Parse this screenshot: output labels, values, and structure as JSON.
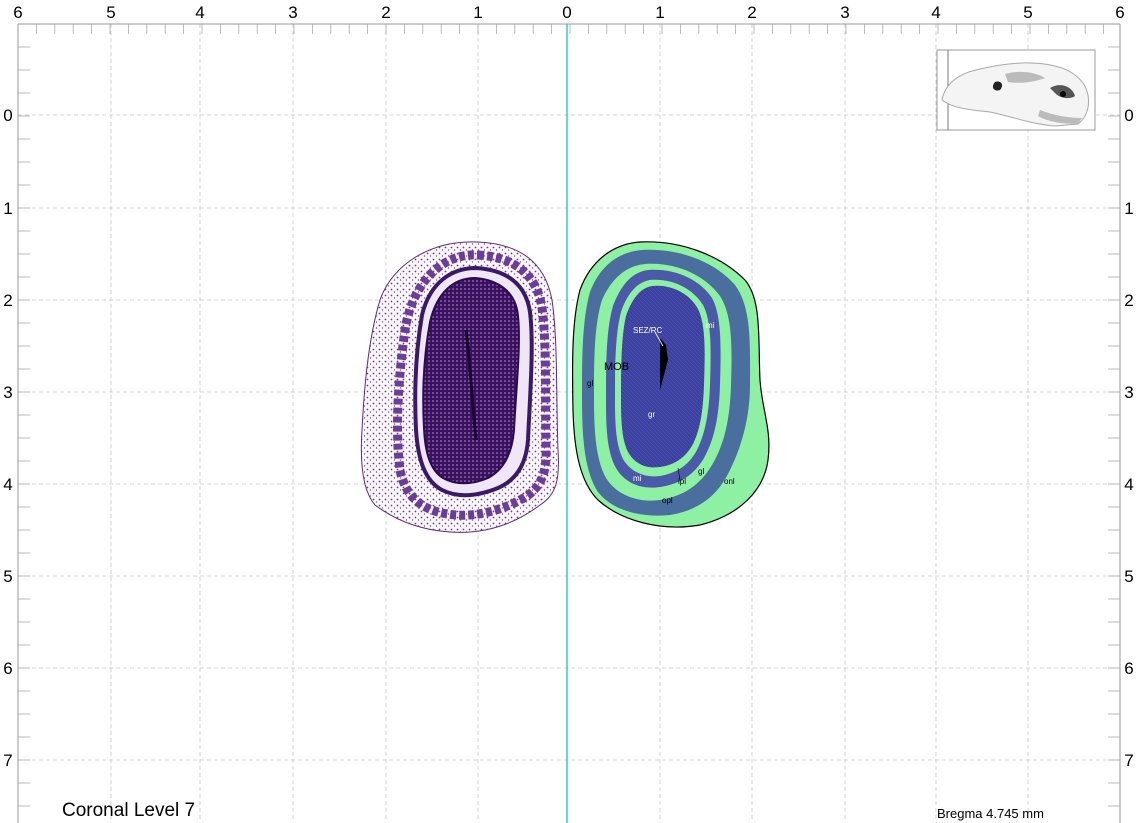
{
  "top_axis_labels": [
    "6",
    "5",
    "4",
    "3",
    "2",
    "1",
    "0",
    "1",
    "2",
    "3",
    "4",
    "5",
    "6"
  ],
  "side_axis_labels": [
    "0",
    "1",
    "2",
    "3",
    "4",
    "5",
    "6",
    "7"
  ],
  "level_title": "Coronal Level 7",
  "bregma": "Bregma 4.745 mm",
  "regions": {
    "mob": "MOB",
    "gl": "gl",
    "gr": "gr",
    "sez_rc": "SEZ/RC",
    "mi_top": "mi",
    "mi_bottom": "mi",
    "ipl": "ipl",
    "gl_right": "gl",
    "opl": "opl",
    "onl": "onl"
  },
  "colors": {
    "grid": "#c8c8c8",
    "midline": "#22c8cc",
    "onl": "#8ef0a3",
    "glomerular": "#4a6f9e",
    "granule": "#3a3c9c",
    "nissl": "#4a1a7a"
  }
}
